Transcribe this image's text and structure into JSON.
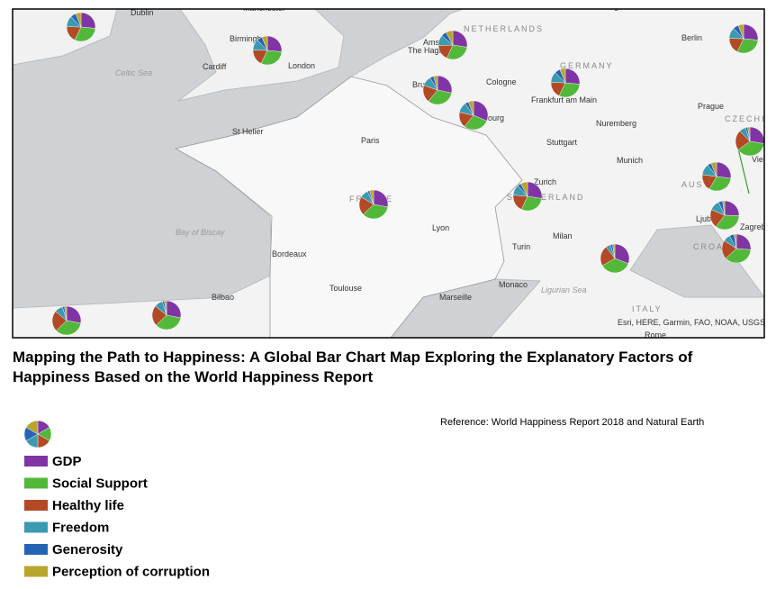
{
  "title": "Mapping the Path to Happiness: A Global Bar Chart Map Exploring the Explanatory Factors of Happiness Based on the World Happiness Report",
  "reference": "Reference: World Happiness Report 2018 and Natural Earth",
  "attribution": "Esri, HERE, Garmin, FAO, NOAA, USGS",
  "legend": {
    "items": [
      {
        "label": "GDP",
        "color": "#8035a5"
      },
      {
        "label": "Social Support",
        "color": "#52b83a"
      },
      {
        "label": "Healthy life",
        "color": "#b24a26"
      },
      {
        "label": "Freedom",
        "color": "#3a9ab0"
      },
      {
        "label": "Generosity",
        "color": "#2563b5"
      },
      {
        "label": "Perception of corruption",
        "color": "#b8a52d"
      }
    ]
  },
  "map": {
    "labels": [
      "Dublin",
      "Manchester",
      "Hamburg",
      "Birmingham",
      "Berlin",
      "NETHERLANDS",
      "Amsterdam",
      "The Hague",
      "Cardiff",
      "London",
      "Celtic Sea",
      "GERMANY",
      "Cologne",
      "Brussels",
      "Frankfurt am Main",
      "Prague",
      "Luxembourg",
      "CZECHIA",
      "St Helier",
      "Paris",
      "Nuremberg",
      "Stuttgart",
      "Vienna",
      "Munich",
      "Zurich",
      "FRANCE",
      "SWITZERLAND",
      "AUSTRIA",
      "Bay of Biscay",
      "Lyon",
      "Milan",
      "Ljubljana",
      "Zagreb",
      "Turin",
      "CROATIA",
      "Bordeaux",
      "Monaco",
      "Toulouse",
      "Marseille",
      "Ligurian Sea",
      "Bilbao",
      "ITALY",
      "Rome"
    ]
  },
  "pies": [
    {
      "values": [
        1.3,
        1.5,
        0.9,
        0.6,
        0.3,
        0.3
      ]
    },
    {
      "values": [
        1.3,
        1.5,
        0.9,
        0.6,
        0.3,
        0.3
      ]
    },
    {
      "values": [
        1.4,
        1.5,
        0.9,
        0.6,
        0.3,
        0.4
      ]
    },
    {
      "values": [
        1.3,
        1.5,
        0.9,
        0.5,
        0.2,
        0.2
      ]
    },
    {
      "values": [
        1.6,
        1.5,
        0.9,
        0.6,
        0.2,
        0.3
      ]
    },
    {
      "values": [
        1.3,
        1.5,
        0.9,
        0.6,
        0.3,
        0.3
      ]
    },
    {
      "values": [
        1.3,
        1.5,
        0.9,
        0.6,
        0.3,
        0.3
      ]
    },
    {
      "values": [
        1.1,
        1.5,
        0.9,
        0.3,
        0.1,
        0.1
      ]
    },
    {
      "values": [
        1.2,
        1.5,
        0.9,
        0.4,
        0.1,
        0.2
      ]
    },
    {
      "values": [
        1.4,
        1.5,
        1.0,
        0.6,
        0.2,
        0.4
      ]
    },
    {
      "values": [
        1.3,
        1.5,
        0.9,
        0.6,
        0.2,
        0.3
      ]
    },
    {
      "values": [
        1.1,
        1.5,
        0.9,
        0.5,
        0.2,
        0.1
      ]
    },
    {
      "values": [
        1.0,
        1.4,
        0.8,
        0.3,
        0.2,
        0.1
      ]
    },
    {
      "values": [
        1.2,
        1.4,
        0.9,
        0.2,
        0.1,
        0.1
      ]
    },
    {
      "values": [
        1.2,
        1.5,
        1.0,
        0.4,
        0.1,
        0.1
      ]
    },
    {
      "values": [
        1.2,
        1.5,
        1.0,
        0.4,
        0.1,
        0.1
      ]
    }
  ]
}
